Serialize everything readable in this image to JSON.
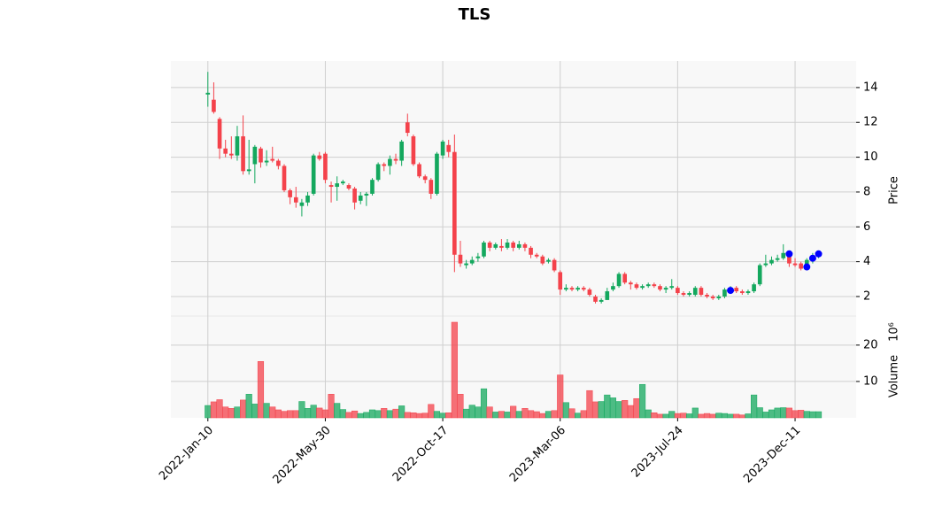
{
  "chart_data": {
    "type": "candlestick",
    "title": "TLS",
    "ylabel": "Price",
    "volume_label": "Volume",
    "volume_scale": "10⁶",
    "up_color": "#14a85e",
    "down_color": "#f4424b",
    "marker_color": "#0000ff",
    "grid": true,
    "xlim": [
      -6.3,
      110.4
    ],
    "xticks": [
      {
        "value": 0,
        "label": "2022-Jan-10"
      },
      {
        "value": 20,
        "label": "2022-May-30"
      },
      {
        "value": 40,
        "label": "2022-Oct-17"
      },
      {
        "value": 60,
        "label": "2023-Mar-06"
      },
      {
        "value": 80,
        "label": "2023-Jul-24"
      },
      {
        "value": 100,
        "label": "2023-Dec-11"
      }
    ],
    "ylim": [
      0.88,
      15.52
    ],
    "yticks": [
      2,
      4,
      6,
      8,
      10,
      12,
      14
    ],
    "volume_ylim": [
      0,
      28
    ],
    "volume_yticks": [
      10,
      20
    ],
    "open": [
      13.6,
      13.3,
      12.2,
      10.5,
      10.2,
      10.1,
      11.2,
      9.2,
      9.6,
      10.5,
      9.7,
      9.9,
      9.8,
      9.5,
      8.1,
      7.7,
      7.2,
      7.4,
      7.9,
      10.1,
      10.2,
      8.4,
      8.3,
      8.5,
      8.4,
      8.2,
      7.5,
      7.8,
      7.9,
      8.7,
      9.6,
      9.5,
      9.9,
      9.8,
      12.0,
      11.2,
      9.6,
      8.9,
      8.7,
      7.9,
      10.1,
      10.7,
      10.3,
      4.4,
      3.8,
      3.9,
      4.2,
      4.3,
      5.1,
      4.8,
      4.9,
      4.8,
      5.1,
      4.8,
      5.0,
      4.8,
      4.4,
      4.3,
      4.0,
      4.1,
      3.4,
      2.4,
      2.5,
      2.4,
      2.5,
      2.4,
      2.0,
      1.7,
      1.8,
      2.4,
      2.6,
      3.3,
      2.8,
      2.7,
      2.5,
      2.6,
      2.7,
      2.6,
      2.4,
      2.5,
      2.5,
      2.2,
      2.1,
      2.1,
      2.5,
      2.1,
      2.0,
      1.9,
      2.0,
      2.4,
      2.5,
      2.3,
      2.2,
      2.3,
      2.7,
      3.8,
      3.9,
      4.1,
      4.2,
      4.5,
      3.9,
      3.9,
      3.6,
      4.1,
      4.3
    ],
    "high": [
      14.9,
      14.3,
      12.3,
      11.0,
      11.2,
      11.8,
      12.4,
      11.0,
      10.7,
      10.6,
      10.4,
      10.6,
      9.9,
      9.6,
      8.2,
      8.3,
      7.6,
      8.0,
      10.2,
      10.3,
      10.3,
      8.6,
      8.9,
      8.7,
      8.5,
      8.3,
      8.0,
      8.0,
      8.8,
      9.7,
      9.7,
      10.1,
      10.2,
      11.0,
      12.5,
      11.3,
      9.7,
      9.0,
      8.8,
      10.3,
      11.0,
      11.0,
      11.3,
      5.2,
      4.1,
      4.3,
      4.5,
      5.2,
      5.2,
      5.1,
      5.3,
      5.3,
      5.2,
      5.2,
      5.1,
      4.9,
      4.5,
      4.4,
      4.2,
      4.2,
      3.5,
      2.7,
      2.6,
      2.6,
      2.6,
      2.5,
      2.1,
      1.9,
      2.5,
      2.8,
      3.4,
      3.4,
      2.9,
      2.8,
      2.7,
      2.8,
      2.8,
      2.7,
      2.6,
      3.0,
      2.6,
      2.3,
      2.3,
      2.6,
      2.6,
      2.2,
      2.1,
      2.1,
      2.5,
      2.6,
      2.6,
      2.4,
      2.4,
      2.8,
      3.9,
      4.4,
      4.3,
      4.4,
      5.0,
      4.6,
      4.2,
      4.0,
      4.2,
      4.5,
      4.5
    ],
    "low": [
      12.9,
      12.5,
      9.9,
      10.0,
      9.9,
      9.8,
      9.0,
      9.0,
      8.5,
      9.4,
      9.5,
      9.7,
      9.3,
      8.0,
      7.3,
      7.1,
      6.6,
      7.2,
      7.8,
      9.8,
      8.5,
      7.4,
      7.5,
      8.4,
      8.1,
      7.0,
      7.3,
      7.2,
      7.8,
      8.6,
      9.2,
      9.0,
      9.6,
      9.5,
      11.2,
      9.5,
      8.8,
      8.5,
      7.6,
      7.8,
      9.9,
      10.0,
      3.4,
      3.7,
      3.6,
      3.8,
      4.0,
      4.2,
      4.6,
      4.7,
      4.6,
      4.7,
      4.6,
      4.7,
      4.6,
      4.2,
      4.2,
      3.8,
      3.9,
      3.4,
      2.1,
      2.3,
      2.3,
      2.3,
      2.3,
      2.0,
      1.6,
      1.6,
      1.8,
      2.3,
      2.5,
      2.7,
      2.4,
      2.4,
      2.4,
      2.5,
      2.5,
      2.3,
      2.2,
      2.4,
      2.1,
      2.0,
      2.0,
      2.0,
      2.0,
      1.9,
      1.8,
      1.8,
      1.9,
      2.3,
      2.2,
      2.1,
      2.1,
      2.2,
      2.6,
      3.7,
      3.8,
      4.0,
      4.1,
      3.7,
      3.7,
      3.5,
      3.5,
      3.9,
      4.2
    ],
    "close": [
      13.7,
      12.6,
      10.5,
      10.2,
      10.1,
      11.2,
      9.2,
      9.3,
      10.6,
      9.7,
      9.8,
      9.8,
      9.5,
      8.1,
      7.7,
      7.4,
      7.4,
      7.8,
      10.1,
      9.9,
      8.7,
      8.3,
      8.5,
      8.6,
      8.2,
      7.4,
      7.8,
      7.9,
      8.7,
      9.6,
      9.5,
      9.9,
      9.8,
      10.9,
      11.4,
      9.6,
      8.9,
      8.7,
      7.9,
      10.2,
      10.9,
      10.3,
      4.4,
      3.9,
      3.9,
      4.1,
      4.3,
      5.1,
      4.8,
      5.0,
      4.8,
      5.1,
      4.8,
      5.0,
      4.8,
      4.4,
      4.3,
      3.9,
      4.1,
      3.5,
      2.4,
      2.5,
      2.4,
      2.5,
      2.4,
      2.1,
      1.7,
      1.8,
      2.3,
      2.6,
      3.3,
      2.8,
      2.7,
      2.5,
      2.6,
      2.7,
      2.6,
      2.4,
      2.5,
      2.6,
      2.2,
      2.1,
      2.2,
      2.5,
      2.1,
      2.0,
      1.9,
      2.0,
      2.4,
      2.5,
      2.3,
      2.2,
      2.3,
      2.7,
      3.8,
      3.9,
      4.1,
      4.2,
      4.5,
      3.9,
      3.8,
      3.6,
      4.1,
      4.3,
      4.4
    ],
    "volume": [
      3.4,
      4.4,
      5,
      3,
      2.6,
      3,
      4.9,
      6.5,
      3.8,
      15.5,
      4,
      3,
      2.2,
      1.8,
      2,
      2,
      4.5,
      2.6,
      3.5,
      2.7,
      2.2,
      6.5,
      4,
      2.3,
      1.5,
      1.9,
      1.2,
      1.5,
      2.2,
      2,
      2.6,
      2,
      2.4,
      3.3,
      1.5,
      1.4,
      1.2,
      1.3,
      3.7,
      1.8,
      1.3,
      1.4,
      26.3,
      6.5,
      2.4,
      3.5,
      3,
      8,
      3,
      1.6,
      1.8,
      1.6,
      3.2,
      1.8,
      2.6,
      2,
      1.7,
      1.2,
      1.8,
      2,
      11.8,
      4.2,
      2.5,
      1.3,
      2,
      7.5,
      4.4,
      4.5,
      6.3,
      5.5,
      4.5,
      4.8,
      3.4,
      5.3,
      9.2,
      2.2,
      1.4,
      1,
      1,
      1.8,
      1.2,
      1.3,
      1.1,
      2.7,
      1,
      1.2,
      1,
      1.3,
      1.2,
      1,
      1,
      0.8,
      1.1,
      6.3,
      2.8,
      1.6,
      2.2,
      2.7,
      2.8,
      2.7,
      2,
      2.1,
      1.8,
      1.7,
      1.7
    ],
    "markers": [
      null,
      null,
      null,
      null,
      null,
      null,
      null,
      null,
      null,
      null,
      null,
      null,
      null,
      null,
      null,
      null,
      null,
      null,
      null,
      null,
      null,
      null,
      null,
      null,
      null,
      null,
      null,
      null,
      null,
      null,
      null,
      null,
      null,
      null,
      null,
      null,
      null,
      null,
      null,
      null,
      null,
      null,
      null,
      null,
      null,
      null,
      null,
      null,
      null,
      null,
      null,
      null,
      null,
      null,
      null,
      null,
      null,
      null,
      null,
      null,
      null,
      null,
      null,
      null,
      null,
      null,
      null,
      null,
      null,
      null,
      null,
      null,
      null,
      null,
      null,
      null,
      null,
      null,
      null,
      null,
      null,
      null,
      null,
      null,
      null,
      null,
      null,
      null,
      null,
      2.35,
      null,
      null,
      null,
      null,
      null,
      null,
      null,
      null,
      null,
      4.45,
      null,
      null,
      3.7,
      4.2,
      4.45
    ]
  }
}
